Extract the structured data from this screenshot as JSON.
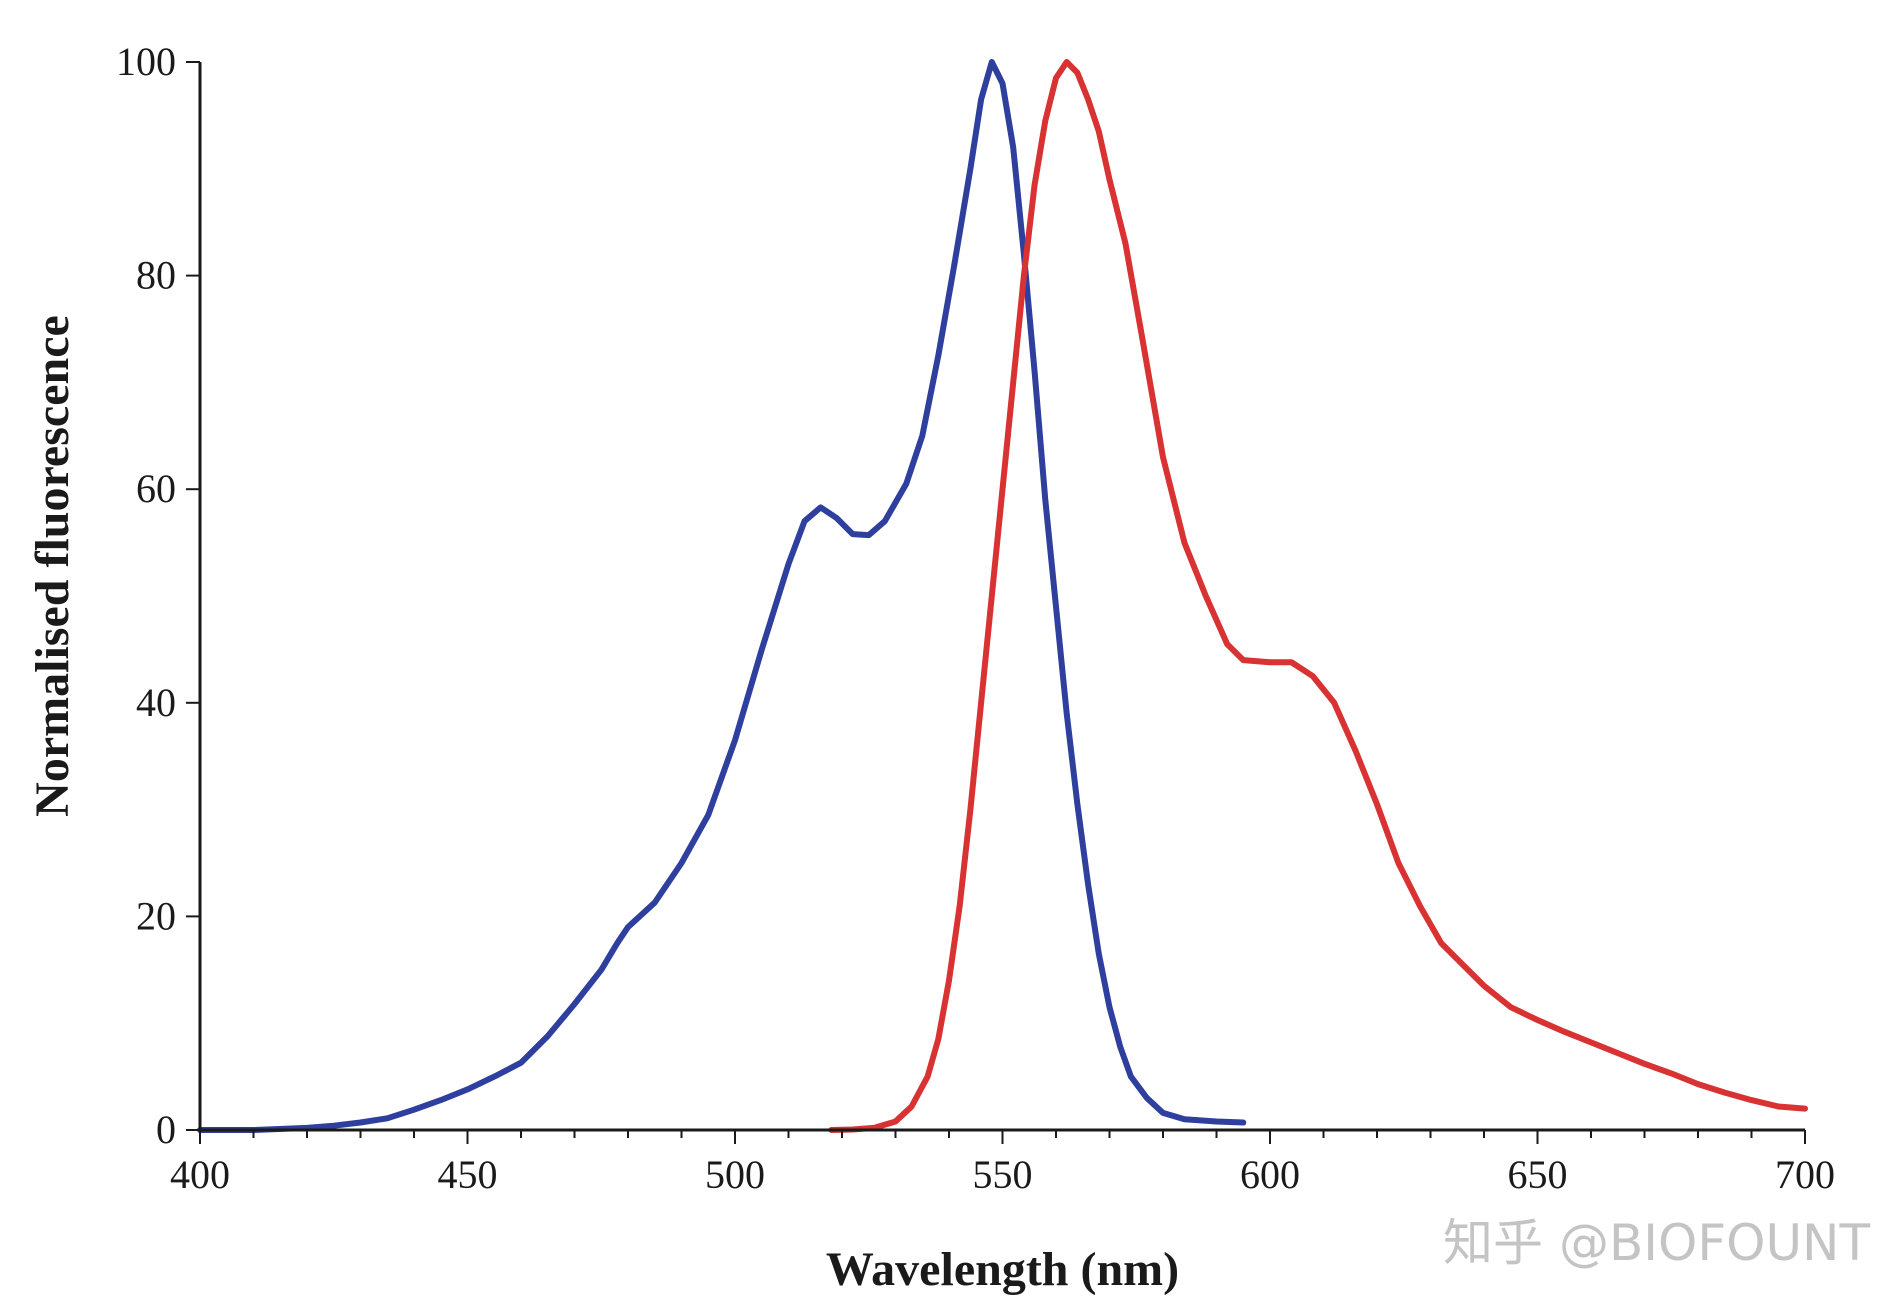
{
  "chart_data": {
    "type": "line",
    "title": "",
    "xlabel": "Wavelength (nm)",
    "ylabel": "Normalised fluorescence",
    "xlim": [
      400,
      700
    ],
    "ylim": [
      0,
      100
    ],
    "xticks": [
      400,
      450,
      500,
      550,
      600,
      650,
      700
    ],
    "yticks": [
      0,
      20,
      40,
      60,
      80,
      100
    ],
    "grid": false,
    "legend": "none",
    "series": [
      {
        "color": "#2e3f9e",
        "points": [
          [
            400,
            0
          ],
          [
            410,
            0
          ],
          [
            420,
            0.2
          ],
          [
            425,
            0.4
          ],
          [
            430,
            0.7
          ],
          [
            435,
            1.1
          ],
          [
            440,
            1.9
          ],
          [
            445,
            2.8
          ],
          [
            450,
            3.8
          ],
          [
            455,
            5.0
          ],
          [
            460,
            6.3
          ],
          [
            465,
            8.8
          ],
          [
            470,
            11.8
          ],
          [
            475,
            15.0
          ],
          [
            478,
            17.5
          ],
          [
            480,
            19.0
          ],
          [
            485,
            21.3
          ],
          [
            490,
            25.0
          ],
          [
            495,
            29.5
          ],
          [
            500,
            36.5
          ],
          [
            505,
            45.0
          ],
          [
            510,
            53.0
          ],
          [
            513,
            57.0
          ],
          [
            516,
            58.3
          ],
          [
            519,
            57.3
          ],
          [
            522,
            55.8
          ],
          [
            525,
            55.7
          ],
          [
            528,
            57.0
          ],
          [
            532,
            60.5
          ],
          [
            535,
            65.0
          ],
          [
            538,
            72.5
          ],
          [
            541,
            81.0
          ],
          [
            544,
            90.0
          ],
          [
            546,
            96.5
          ],
          [
            548,
            100
          ],
          [
            550,
            98.0
          ],
          [
            552,
            92.0
          ],
          [
            554,
            82.0
          ],
          [
            556,
            71.0
          ],
          [
            558,
            59.0
          ],
          [
            560,
            49.0
          ],
          [
            562,
            39.0
          ],
          [
            564,
            30.5
          ],
          [
            566,
            23.0
          ],
          [
            568,
            16.5
          ],
          [
            570,
            11.5
          ],
          [
            572,
            7.8
          ],
          [
            574,
            5.0
          ],
          [
            577,
            3.0
          ],
          [
            580,
            1.6
          ],
          [
            584,
            1.0
          ],
          [
            590,
            0.8
          ],
          [
            595,
            0.7
          ]
        ]
      },
      {
        "color": "#d83232",
        "points": [
          [
            518,
            0
          ],
          [
            522,
            0.05
          ],
          [
            526,
            0.2
          ],
          [
            530,
            0.8
          ],
          [
            533,
            2.2
          ],
          [
            536,
            5.0
          ],
          [
            538,
            8.5
          ],
          [
            540,
            14.0
          ],
          [
            542,
            21.0
          ],
          [
            544,
            30.0
          ],
          [
            546,
            40.0
          ],
          [
            548,
            50.0
          ],
          [
            550,
            60.0
          ],
          [
            552,
            70.0
          ],
          [
            554,
            80.0
          ],
          [
            556,
            88.5
          ],
          [
            558,
            94.5
          ],
          [
            560,
            98.5
          ],
          [
            562,
            100
          ],
          [
            564,
            99.0
          ],
          [
            566,
            96.5
          ],
          [
            568,
            93.5
          ],
          [
            570,
            89.0
          ],
          [
            573,
            83.0
          ],
          [
            576,
            74.5
          ],
          [
            580,
            63.0
          ],
          [
            584,
            55.0
          ],
          [
            588,
            50.0
          ],
          [
            592,
            45.5
          ],
          [
            595,
            44.0
          ],
          [
            600,
            43.8
          ],
          [
            604,
            43.8
          ],
          [
            608,
            42.5
          ],
          [
            612,
            40.0
          ],
          [
            616,
            35.5
          ],
          [
            620,
            30.5
          ],
          [
            624,
            25.0
          ],
          [
            628,
            21.0
          ],
          [
            632,
            17.5
          ],
          [
            636,
            15.5
          ],
          [
            640,
            13.5
          ],
          [
            645,
            11.5
          ],
          [
            650,
            10.3
          ],
          [
            655,
            9.2
          ],
          [
            660,
            8.2
          ],
          [
            665,
            7.2
          ],
          [
            670,
            6.2
          ],
          [
            675,
            5.3
          ],
          [
            680,
            4.3
          ],
          [
            685,
            3.5
          ],
          [
            690,
            2.8
          ],
          [
            695,
            2.2
          ],
          [
            700,
            2.0
          ]
        ]
      }
    ]
  },
  "watermark": "知乎 @BIOFOUNT"
}
